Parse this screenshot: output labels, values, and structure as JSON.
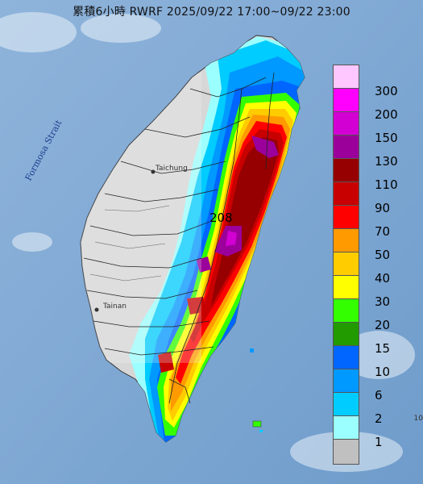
{
  "title": "累積6小時 RWRF 2025/09/22 17:00~09/22 23:00",
  "map": {
    "strait_label": "Formosa Strait",
    "max_value_label": "208",
    "city_labels": [
      {
        "name": "city-taichung-label",
        "text": "Taichung"
      },
      {
        "name": "city-tainan-label",
        "text": "Tainan"
      }
    ],
    "edge_label": "10"
  },
  "legend": {
    "unit_colors": {
      "300": "#ffc7ff",
      "200": "#ff00ff",
      "150": "#d200d2",
      "130": "#9b009b",
      "110": "#960000",
      "90": "#c80000",
      "70": "#ff0000",
      "50": "#ff9a00",
      "40": "#ffcc00",
      "30": "#ffff00",
      "20": "#33ff00",
      "15": "#219b00",
      "10": "#0066ff",
      "6": "#0099ff",
      "2": "#00ccff",
      "1": "#9cffff",
      "0": "#c0c0c0"
    },
    "items": [
      {
        "label": "300",
        "color": "#ffc7ff"
      },
      {
        "label": "200",
        "color": "#ff00ff"
      },
      {
        "label": "150",
        "color": "#d200d2"
      },
      {
        "label": "130",
        "color": "#9b009b"
      },
      {
        "label": "110",
        "color": "#960000"
      },
      {
        "label": "90",
        "color": "#c80000"
      },
      {
        "label": "70",
        "color": "#ff0000"
      },
      {
        "label": "50",
        "color": "#ff9a00"
      },
      {
        "label": "40",
        "color": "#ffcc00"
      },
      {
        "label": "30",
        "color": "#ffff00"
      },
      {
        "label": "20",
        "color": "#33ff00"
      },
      {
        "label": "15",
        "color": "#219b00"
      },
      {
        "label": "10",
        "color": "#0066ff"
      },
      {
        "label": "6",
        "color": "#0099ff"
      },
      {
        "label": "2",
        "color": "#00ccff"
      },
      {
        "label": "1",
        "color": "#9cffff"
      },
      {
        "label": "",
        "color": "#c0c0c0"
      }
    ]
  }
}
